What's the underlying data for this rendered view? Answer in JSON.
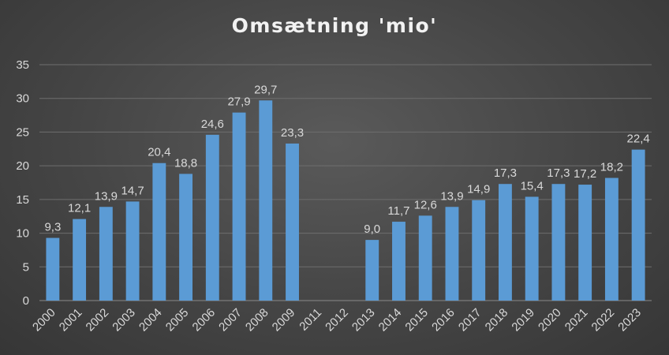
{
  "chart_data": {
    "type": "bar",
    "title": "Omsætning 'mio'",
    "xlabel": "",
    "ylabel": "",
    "ylim": [
      0,
      35
    ],
    "yticks": [
      "0",
      "5",
      "10",
      "15",
      "20",
      "25",
      "30",
      "35"
    ],
    "grid": true,
    "legend": "none",
    "bar_color": "#5b9bd5",
    "categories": [
      "2000",
      "2001",
      "2002",
      "2003",
      "2004",
      "2005",
      "2006",
      "2007",
      "2008",
      "2009",
      "2011",
      "2012",
      "2013",
      "2014",
      "2015",
      "2016",
      "2017",
      "2018",
      "2019",
      "2020",
      "2021",
      "2022",
      "2023"
    ],
    "values": [
      9.3,
      12.1,
      13.9,
      14.7,
      20.4,
      18.8,
      24.6,
      27.9,
      29.7,
      23.3,
      null,
      null,
      9.0,
      11.7,
      12.6,
      13.9,
      14.9,
      17.3,
      15.4,
      17.3,
      17.2,
      18.2,
      22.4
    ],
    "data_labels": [
      "9,3",
      "12,1",
      "13,9",
      "14,7",
      "20,4",
      "18,8",
      "24,6",
      "27,9",
      "29,7",
      "23,3",
      "",
      "",
      "9,0",
      "11,7",
      "12,6",
      "13,9",
      "14,9",
      "17,3",
      "15,4",
      "17,3",
      "17,2",
      "18,2",
      "22,4"
    ]
  }
}
